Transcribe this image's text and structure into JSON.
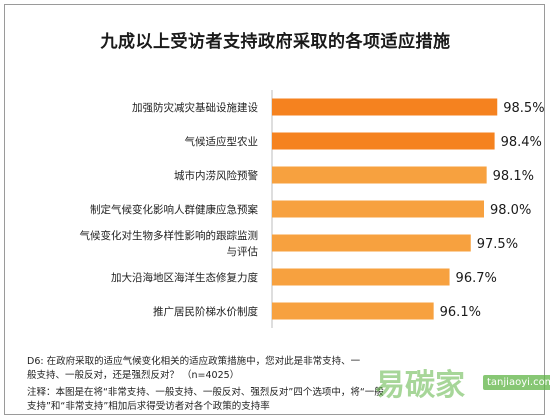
{
  "chart_data": {
    "type": "bar",
    "orientation": "horizontal",
    "title": "九成以上受访者支持政府采取的各项适应措施",
    "categories": [
      "加强防灾减灾基础设施建设",
      "气候适应型农业",
      "城市内涝风险预警",
      "制定气候变化影响人群健康应急预案",
      "气候变化对生物多样性影响的跟踪监测与评估",
      "加大沿海地区海洋生态修复力度",
      "推广居民阶梯水价制度"
    ],
    "values": [
      98.5,
      98.4,
      98.1,
      98.0,
      97.5,
      96.7,
      96.1
    ],
    "value_labels": [
      "98.5%",
      "98.4%",
      "98.1%",
      "98.0%",
      "97.5%",
      "96.7%",
      "96.1%"
    ],
    "colors": [
      "#f5821f",
      "#f5821f",
      "#f7a13f",
      "#f7a13f",
      "#f7a13f",
      "#f7a13f",
      "#f7a13f"
    ],
    "xlim": [
      90,
      100
    ],
    "grid": false,
    "legend": "none"
  },
  "notes": {
    "question": "D6: 在政府采取的适应气候变化相关的适应政策措施中，您对此是非常支持、一般支持、一般反对，还是强烈反对？ （n=4025）",
    "footnote": "注释：本图是在将“非常支持、一般支持、一般反对、强烈反对”四个选项中，将“一般支持”和“非常支持”相加后求得受访者对各个政策的支持率"
  },
  "watermark": {
    "cn": "易碳家",
    "en": "tanjiaoyi.com"
  }
}
